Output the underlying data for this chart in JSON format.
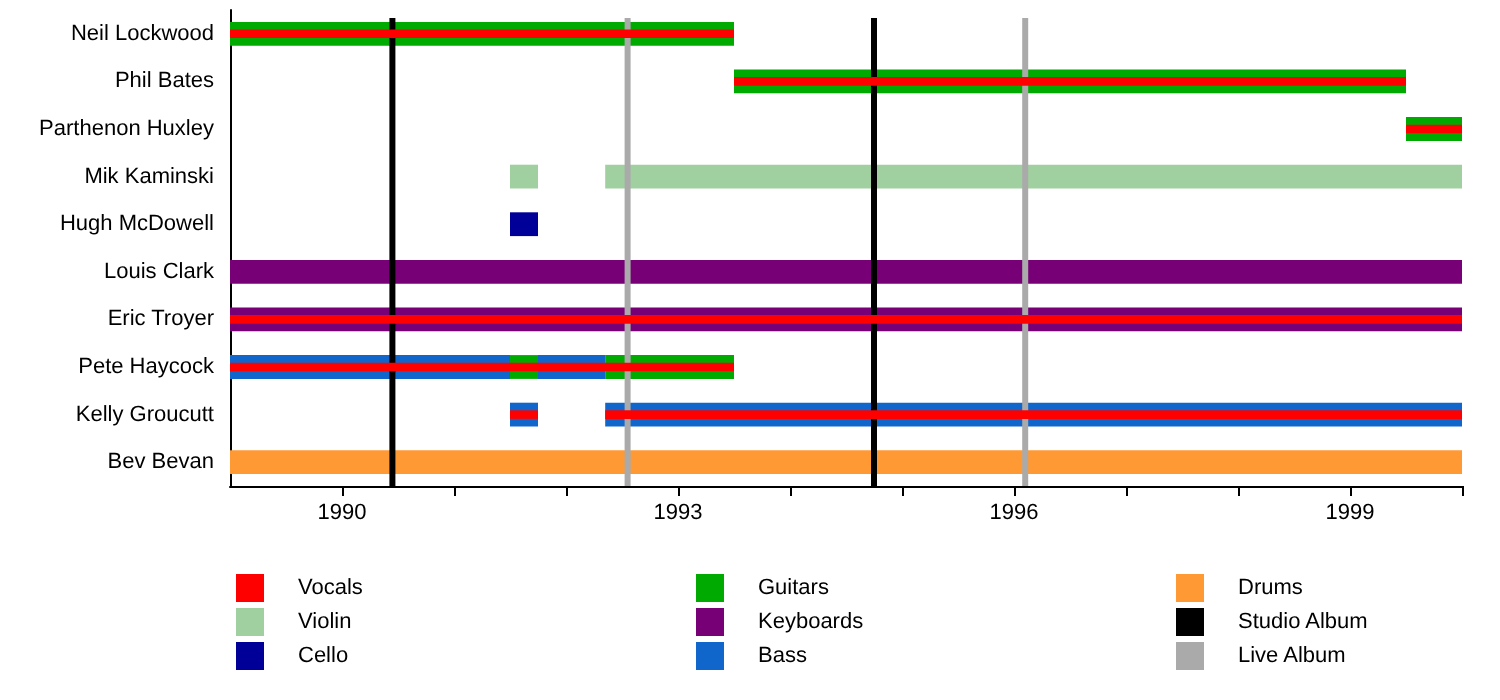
{
  "chart_data": {
    "type": "bar",
    "orientation": "horizontal",
    "categories": [
      "Neil Lockwood",
      "Phil Bates",
      "Parthenon Huxley",
      "Mik Kaminski",
      "Hugh McDowell",
      "Louis Clark",
      "Eric Troyer",
      "Pete Haycock",
      "Kelly Groucutt",
      "Bev Bevan"
    ],
    "series": [
      {
        "name": "Vocals",
        "color": "#ff0000",
        "base": [
          1989,
          1993.5,
          1999.5,
          null,
          null,
          null,
          1989,
          1989,
          1991.5,
          null
        ],
        "values": [
          4.5,
          6,
          0.5,
          null,
          null,
          null,
          11,
          4.5,
          0.25,
          null
        ]
      },
      {
        "color": "#ff0000",
        "base": [
          null,
          null,
          null,
          null,
          null,
          null,
          null,
          null,
          1992.35,
          null
        ],
        "values": [
          null,
          null,
          null,
          null,
          null,
          null,
          null,
          null,
          7.65,
          null
        ]
      },
      {
        "name": "Violin",
        "color": "#a0d0a0",
        "base": [
          null,
          null,
          null,
          1991.5,
          null,
          null,
          null,
          null,
          null,
          null
        ],
        "values": [
          null,
          null,
          null,
          0.25,
          null,
          null,
          null,
          null,
          null,
          null
        ]
      },
      {
        "color": "#a0d0a0",
        "base": [
          null,
          null,
          null,
          1992.35,
          null,
          null,
          null,
          null,
          null,
          null
        ],
        "values": [
          null,
          null,
          null,
          7.65,
          null,
          null,
          null,
          null,
          null,
          null
        ]
      },
      {
        "name": "Cello",
        "color": "#000099",
        "base": [
          null,
          null,
          null,
          null,
          1991.5,
          null,
          null,
          null,
          null,
          null
        ],
        "values": [
          null,
          null,
          null,
          null,
          0.25,
          null,
          null,
          null,
          null,
          null
        ]
      },
      {
        "name": "Guitars",
        "color": "#00aa00",
        "base": [
          1989,
          1993.5,
          1999.5,
          null,
          null,
          null,
          null,
          1991.5,
          null,
          null
        ],
        "values": [
          4.5,
          6,
          0.5,
          null,
          null,
          null,
          null,
          0.25,
          null,
          null
        ]
      },
      {
        "color": "#00aa00",
        "base": [
          null,
          null,
          null,
          null,
          null,
          null,
          null,
          1992.35,
          null,
          null
        ],
        "values": [
          null,
          null,
          null,
          null,
          null,
          null,
          null,
          1.15,
          null,
          null
        ]
      },
      {
        "name": "Keyboards",
        "color": "#770077",
        "base": [
          null,
          null,
          null,
          null,
          null,
          1989,
          1989,
          null,
          null,
          null
        ],
        "values": [
          null,
          null,
          null,
          null,
          null,
          11,
          11,
          null,
          null,
          null
        ]
      },
      {
        "name": "Bass",
        "color": "#1166cc",
        "base": [
          null,
          null,
          null,
          null,
          null,
          null,
          null,
          1989,
          1991.5,
          null
        ],
        "values": [
          null,
          null,
          null,
          null,
          null,
          null,
          null,
          2.5,
          0.25,
          null
        ]
      },
      {
        "color": "#1166cc",
        "base": [
          null,
          null,
          null,
          null,
          null,
          null,
          null,
          1991.75,
          1992.35,
          null
        ],
        "values": [
          null,
          null,
          null,
          null,
          null,
          null,
          null,
          0.6,
          7.65,
          null
        ]
      },
      {
        "name": "Drums",
        "color": "#ff9933",
        "base": [
          null,
          null,
          null,
          null,
          null,
          null,
          null,
          null,
          null,
          1989
        ],
        "values": [
          null,
          null,
          null,
          null,
          null,
          null,
          null,
          null,
          null,
          11
        ]
      }
    ],
    "ref_lines": [
      {
        "axis": "x",
        "value": 1990.45,
        "label": "Studio Album",
        "color": "#000000"
      },
      {
        "axis": "x",
        "value": 1994.75,
        "color": "#000000"
      },
      {
        "axis": "x",
        "value": 1992.55,
        "label": "Live Album",
        "color": "#aaaaaa"
      },
      {
        "axis": "x",
        "value": 1996.1,
        "color": "#aaaaaa"
      }
    ],
    "xlim": [
      1989,
      2000
    ],
    "xticks": [
      1990,
      {
        "value": 1991,
        "label": null
      },
      {
        "value": 1992,
        "label": null
      },
      1993,
      {
        "value": 1994,
        "label": null
      },
      {
        "value": 1995,
        "label": null
      },
      1996,
      {
        "value": 1997,
        "label": null
      },
      {
        "value": 1998,
        "label": null
      },
      1999,
      {
        "value": 2000,
        "label": null
      }
    ],
    "legend": "bottom"
  }
}
